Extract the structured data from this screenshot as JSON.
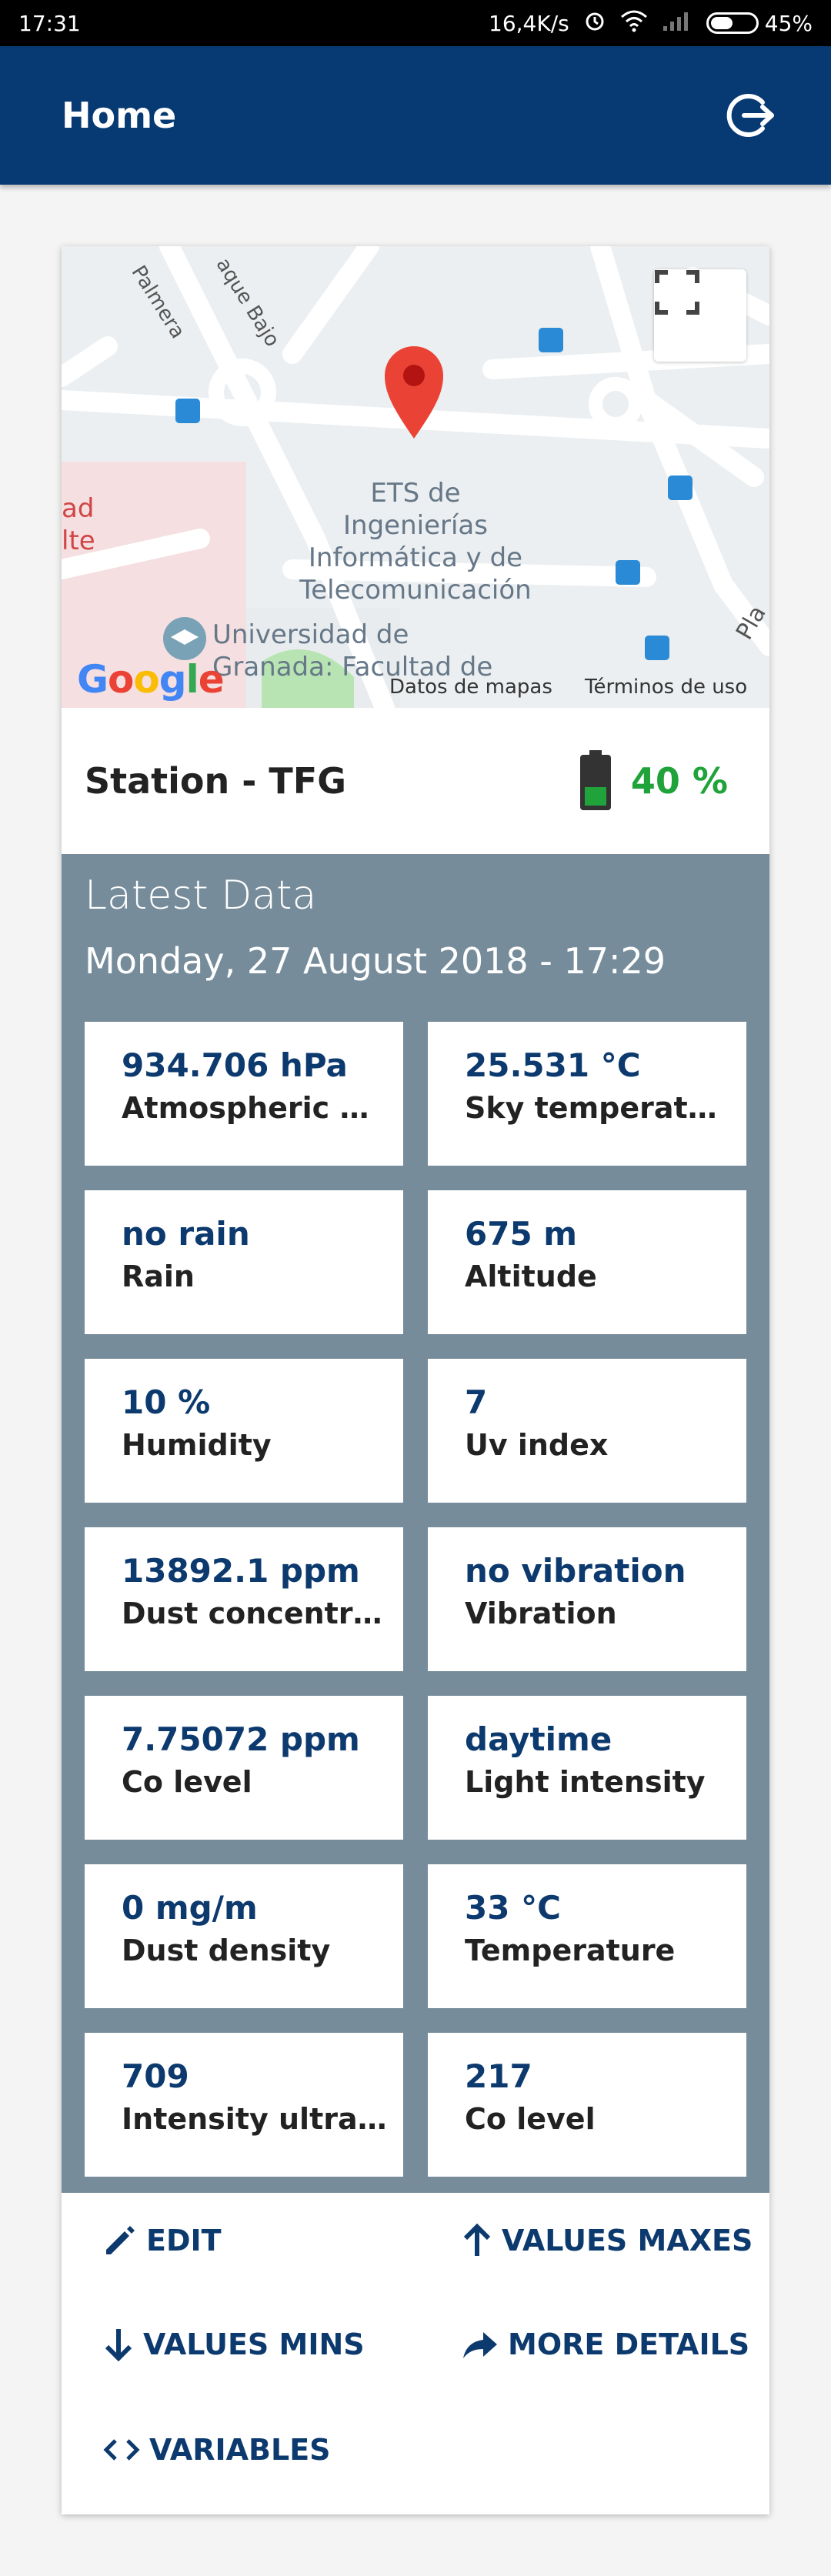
{
  "status_bar": {
    "time": "17:31",
    "network_speed": "16,4K/s",
    "battery": "45%",
    "icons": [
      "alarm-icon",
      "wifi-icon",
      "signal-icon",
      "battery-icon"
    ]
  },
  "app_bar": {
    "title": "Home",
    "action_icon": "logout-icon"
  },
  "map": {
    "place_name": "ETS de Ingenierías Informática y de Telecomunicación",
    "place_line1": "ETS de",
    "place_line2": "Ingenierías",
    "place_line3": "Informática y de",
    "place_line4": "Telecomunicación",
    "nearby_line1": "Universidad de",
    "nearby_line2": "Granada: Facultad de",
    "street_1": "Palmera",
    "street_2": "aque Bajo",
    "street_3": "Pla",
    "street_4": "ad",
    "street_5": "lte",
    "google_logo": "Google",
    "attribution": "Datos de mapas",
    "terms": "Términos de uso",
    "accent_color": "#ea4335"
  },
  "station": {
    "name": "Station - TFG",
    "battery_level": "40 %",
    "battery_fraction": 0.4,
    "battery_color": "#1fa33a"
  },
  "latest": {
    "title": "Latest Data",
    "date": "Monday, 27 August 2018 - 17:29",
    "panel_color": "#768c9a",
    "tiles": [
      {
        "value": "934.706 hPa",
        "label": "Atmospheric pr..."
      },
      {
        "value": "25.531 °C",
        "label": "Sky temperature"
      },
      {
        "value": "no rain",
        "label": "Rain"
      },
      {
        "value": "675 m",
        "label": "Altitude"
      },
      {
        "value": "10 %",
        "label": "Humidity"
      },
      {
        "value": "7",
        "label": "Uv index"
      },
      {
        "value": "13892.1 ppm",
        "label": "Dust concentrat..."
      },
      {
        "value": "no vibration",
        "label": "Vibration"
      },
      {
        "value": "7.75072 ppm",
        "label": "Co level"
      },
      {
        "value": "daytime",
        "label": "Light intensity"
      },
      {
        "value": "0 mg/m",
        "label": "Dust density"
      },
      {
        "value": "33 °C",
        "label": "Temperature"
      },
      {
        "value": "709",
        "label": "Intensity ultravi..."
      },
      {
        "value": "217",
        "label": "Co level"
      }
    ]
  },
  "actions": {
    "edit": "EDIT",
    "values_maxes": "VALUES MAXES",
    "values_mins": "VALUES MINS",
    "more_details": "MORE DETAILS",
    "variables": "VARIABLES"
  },
  "colors": {
    "primary": "#073a73",
    "text_dark_blue": "#0d3a6e"
  }
}
